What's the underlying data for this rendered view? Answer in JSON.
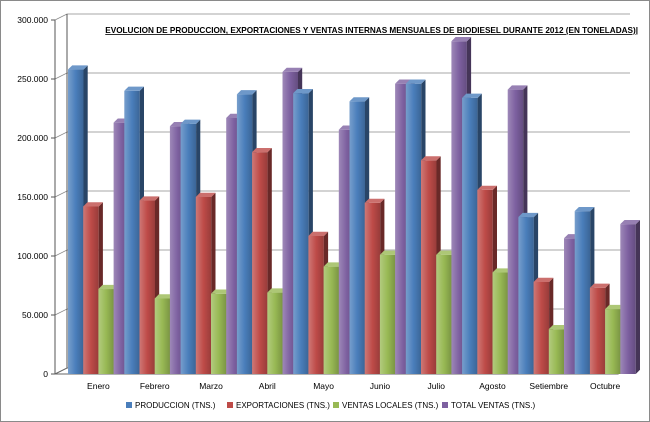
{
  "chart_data": {
    "type": "bar",
    "title": "EVOLUCION DE PRODUCCION, EXPORTACIONES Y VENTAS INTERNAS MENSUALES DE BIODIESEL DURANTE 2012 (EN TONELADAS)|",
    "xlabel": "",
    "ylabel": "",
    "ylim": [
      0,
      300000
    ],
    "yticks": [
      0,
      50000,
      100000,
      150000,
      200000,
      250000,
      300000
    ],
    "ytick_labels": [
      "0",
      "50.000",
      "100.000",
      "150.000",
      "200.000",
      "250.000",
      "300.000"
    ],
    "grid": true,
    "legend_position": "bottom",
    "categories": [
      "Enero",
      "Febrero",
      "Marzo",
      "Abril",
      "Mayo",
      "Junio",
      "Julio",
      "Agosto",
      "Setiembre",
      "Octubre"
    ],
    "series": [
      {
        "name": "PRODUCCION (TNS.)",
        "color": "#4a7ebb",
        "values": [
          258000,
          240000,
          212000,
          237000,
          238000,
          231000,
          246000,
          234000,
          133000,
          138000
        ]
      },
      {
        "name": "EXPORTACIONES (TNS.)",
        "color": "#be4b48",
        "values": [
          142000,
          147000,
          150000,
          188000,
          117000,
          145000,
          181000,
          156000,
          78000,
          73000
        ]
      },
      {
        "name": "VENTAS LOCALES (TNS.)",
        "color": "#98b954",
        "values": [
          72000,
          64000,
          68000,
          69000,
          91000,
          101000,
          101000,
          86000,
          38000,
          55000
        ]
      },
      {
        "name": "TOTAL VENTAS (TNS.)",
        "color": "#7d60a0",
        "values": [
          213000,
          210000,
          217000,
          256000,
          207000,
          246000,
          282000,
          241000,
          115000,
          127000
        ]
      }
    ]
  }
}
